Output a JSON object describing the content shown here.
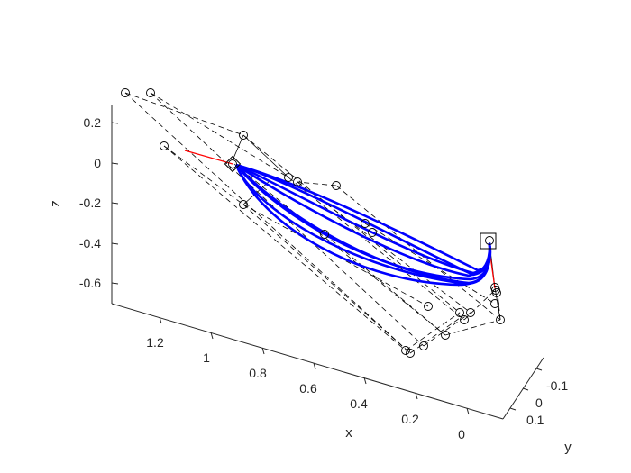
{
  "chart_data": {
    "type": "3d-line",
    "title": "",
    "xlabel": "x",
    "ylabel": "y",
    "zlabel": "z",
    "z_ticks": [
      "0.2",
      "0",
      "-0.2",
      "-0.4",
      "-0.6"
    ],
    "x_ticks": [
      "1.2",
      "1",
      "0.8",
      "0.6",
      "0.4",
      "0.2",
      "0"
    ],
    "y_ticks": [
      "-0.1",
      "0",
      "0.1"
    ],
    "xlim": [
      -0.05,
      1.35
    ],
    "ylim": [
      -0.15,
      0.15
    ],
    "zlim": [
      -0.7,
      0.3
    ],
    "grid": false,
    "colors": {
      "curves": "#0000ff",
      "red_segments": "#ff0000",
      "markers": "#000000",
      "frame_lines": "#000000",
      "axes": "#262626"
    },
    "series_description": {
      "blue_curve_count": 8,
      "start_point_approx": {
        "x": 0.9,
        "y": 0.0,
        "z": 0.0
      },
      "end_point_approx": {
        "x": 0.0,
        "y": 0.0,
        "z": -0.4
      }
    }
  }
}
